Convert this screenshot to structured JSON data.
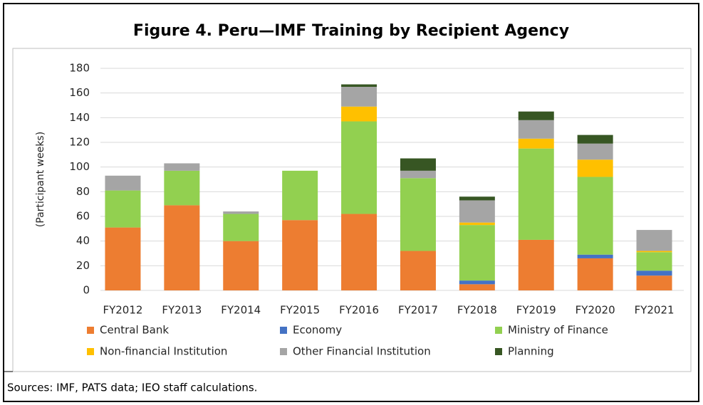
{
  "chart_data": {
    "type": "bar",
    "stacked": true,
    "title": "Figure 4. Peru—IMF Training by Recipient Agency",
    "y_label": "(Participant weeks)",
    "source": "Sources: IMF, PATS data; IEO staff calculations.",
    "categories": [
      "FY2012",
      "FY2013",
      "FY2014",
      "FY2015",
      "FY2016",
      "FY2017",
      "FY2018",
      "FY2019",
      "FY2020",
      "FY2021"
    ],
    "series": [
      {
        "name": "Central Bank",
        "color": "#ed7d31",
        "values": [
          51,
          69,
          40,
          57,
          62,
          32,
          5,
          41,
          26,
          12
        ]
      },
      {
        "name": "Economy",
        "color": "#4472c4",
        "values": [
          0,
          0,
          0,
          0,
          0,
          0,
          3,
          0,
          3,
          4
        ]
      },
      {
        "name": "Ministry of Finance",
        "color": "#92d050",
        "values": [
          30,
          28,
          22,
          40,
          75,
          59,
          45,
          74,
          63,
          15
        ]
      },
      {
        "name": "Non-financial Institution",
        "color": "#ffc000",
        "values": [
          0,
          0,
          0,
          0,
          12,
          0,
          2,
          8,
          14,
          1
        ]
      },
      {
        "name": "Other Financial Institution",
        "color": "#a5a5a5",
        "values": [
          12,
          6,
          2,
          0,
          16,
          6,
          18,
          15,
          13,
          17
        ]
      },
      {
        "name": "Planning",
        "color": "#375623",
        "values": [
          0,
          0,
          0,
          0,
          2,
          10,
          3,
          7,
          7,
          0
        ]
      }
    ],
    "ylim": [
      0,
      180
    ],
    "yticks": [
      0,
      20,
      40,
      60,
      80,
      100,
      120,
      140,
      160,
      180
    ],
    "grid": true
  }
}
